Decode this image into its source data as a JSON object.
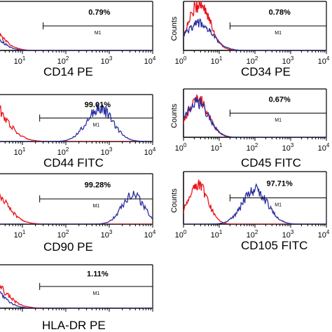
{
  "figure": {
    "label": "flow-cytometry-histogram-panels"
  },
  "colors": {
    "isotype": "#e8141c",
    "marker": "#2a2fa0",
    "axis": "#000000"
  },
  "chart_data": [
    {
      "type": "area",
      "title": "CD14 PE",
      "xlabel": "CD14 PE",
      "ylabel": "",
      "xscale": "log",
      "xlim": [
        1,
        10000
      ],
      "x_tick_labels": [
        "10^1",
        "10^2",
        "10^3",
        "10^4"
      ],
      "gate": {
        "name": "M1",
        "range": [
          30,
          10000
        ]
      },
      "annotation": "0.79%",
      "series": [
        {
          "color": "#e8141c",
          "peak": 1.2,
          "width": 0.35,
          "height": 0.62
        },
        {
          "color": "#2a2fa0",
          "peak": 1.15,
          "width": 0.32,
          "height": 0.55
        }
      ]
    },
    {
      "type": "area",
      "title": "CD34 PE",
      "xlabel": "CD34 PE",
      "ylabel": "Counts",
      "xscale": "log",
      "xlim": [
        1,
        10000
      ],
      "x_tick_labels": [
        "10^0",
        "10^1",
        "10^2",
        "10^3",
        "10^4"
      ],
      "gate": {
        "name": "M1",
        "range": [
          20,
          10000
        ]
      },
      "annotation": "0.78%",
      "series": [
        {
          "color": "#e8141c",
          "peak": 2.8,
          "width": 0.3,
          "height": 0.95
        },
        {
          "color": "#2a2fa0",
          "peak": 2.6,
          "width": 0.38,
          "height": 0.55
        }
      ]
    },
    {
      "type": "area",
      "title": "CD44 FITC",
      "xlabel": "CD44 FITC",
      "ylabel": "",
      "xscale": "log",
      "xlim": [
        1,
        10000
      ],
      "x_tick_labels": [
        "10^1",
        "10^2",
        "10^3",
        "10^4"
      ],
      "gate": {
        "name": "M1",
        "range": [
          25,
          10000
        ]
      },
      "annotation": "99.01%",
      "series": [
        {
          "color": "#e8141c",
          "peak": 1.5,
          "width": 0.4,
          "height": 0.9
        },
        {
          "color": "#2a2fa0",
          "peak": 600,
          "width": 0.3,
          "height": 0.7
        }
      ]
    },
    {
      "type": "area",
      "title": "CD45 FITC",
      "xlabel": "CD45 FITC",
      "ylabel": "Counts",
      "xscale": "log",
      "xlim": [
        1,
        10000
      ],
      "x_tick_labels": [
        "10^0",
        "10^1",
        "10^2",
        "10^3",
        "10^4"
      ],
      "gate": {
        "name": "M1",
        "range": [
          20,
          10000
        ]
      },
      "annotation": "0.67%",
      "series": [
        {
          "color": "#e8141c",
          "peak": 2.5,
          "width": 0.3,
          "height": 0.78
        },
        {
          "color": "#2a2fa0",
          "peak": 2.4,
          "width": 0.32,
          "height": 0.72
        }
      ]
    },
    {
      "type": "area",
      "title": "CD90 PE",
      "xlabel": "CD90 PE",
      "ylabel": "",
      "xscale": "log",
      "xlim": [
        1,
        10000
      ],
      "x_tick_labels": [
        "10^1",
        "10^2",
        "10^3",
        "10^4"
      ],
      "gate": {
        "name": "M1",
        "range": [
          25,
          10000
        ]
      },
      "annotation": "99.28%",
      "series": [
        {
          "color": "#e8141c",
          "peak": 1.5,
          "width": 0.38,
          "height": 0.85
        },
        {
          "color": "#2a2fa0",
          "peak": 3500,
          "width": 0.25,
          "height": 0.6
        }
      ]
    },
    {
      "type": "area",
      "title": "CD105 FITC",
      "xlabel": "CD105 FITC",
      "ylabel": "Counts",
      "xscale": "log",
      "xlim": [
        1,
        10000
      ],
      "x_tick_labels": [
        "10^0",
        "10^1",
        "10^2",
        "10^3",
        "10^4"
      ],
      "gate": {
        "name": "M1",
        "range": [
          20,
          10000
        ]
      },
      "annotation": "97.71%",
      "series": [
        {
          "color": "#e8141c",
          "peak": 2.5,
          "width": 0.28,
          "height": 0.75
        },
        {
          "color": "#2a2fa0",
          "peak": 100,
          "width": 0.35,
          "height": 0.65
        }
      ]
    },
    {
      "type": "area",
      "title": "HLA-DR PE",
      "xlabel": "HLA-DR PE",
      "ylabel": "",
      "xscale": "log",
      "xlim": [
        1,
        10000
      ],
      "x_tick_labels": [],
      "gate": {
        "name": "M1",
        "range": [
          25,
          10000
        ]
      },
      "annotation": "1.11%",
      "series": [
        {
          "color": "#e8141c",
          "peak": 1.3,
          "width": 0.4,
          "height": 0.78
        },
        {
          "color": "#2a2fa0",
          "peak": 1.2,
          "width": 0.35,
          "height": 0.72
        }
      ]
    }
  ]
}
